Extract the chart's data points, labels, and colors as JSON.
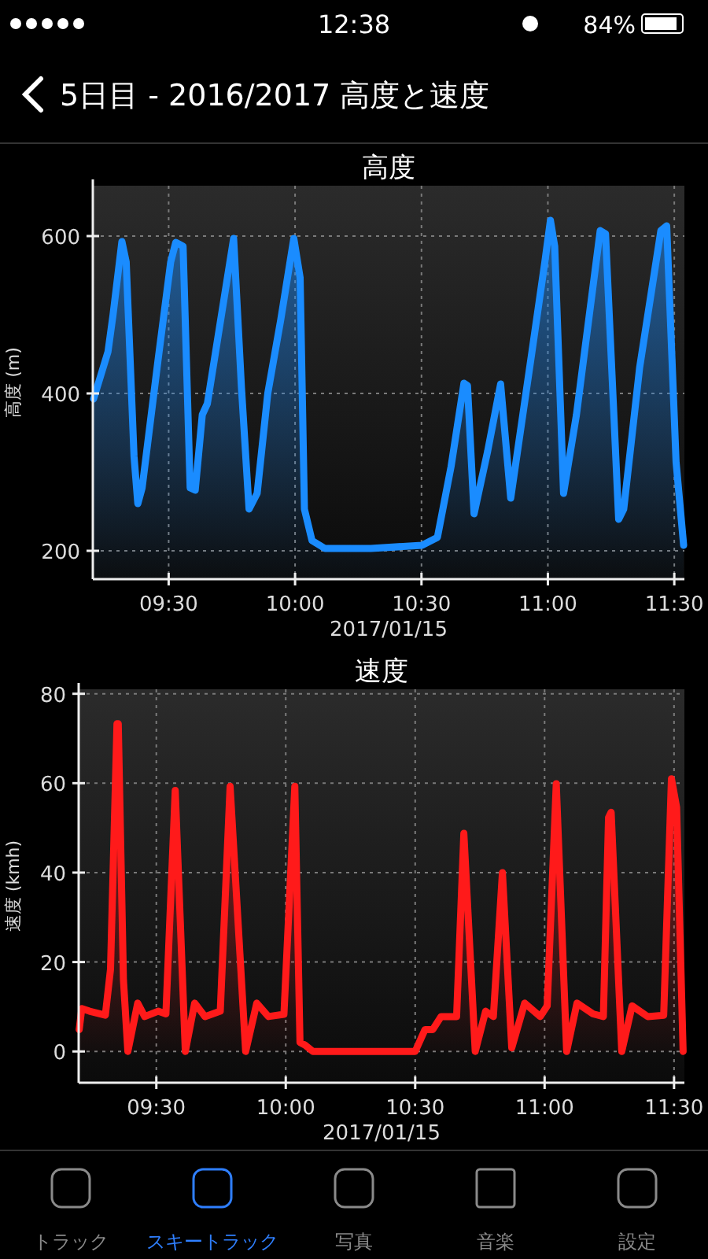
{
  "chart_data": [
    {
      "type": "other",
      "title": "5日目 - 2016/2017 高度と速度",
      "annotations": [
        "12:38",
        "84%",
        "トラック",
        "スキートラック",
        "写真",
        "音楽",
        "設定"
      ]
    },
    {
      "type": "area",
      "title": "高度",
      "xlabel": "2017/01/15",
      "ylabel": "高度 (m)",
      "xlim": [
        9.2,
        11.54
      ],
      "ylim": [
        164,
        664
      ],
      "xticks": [
        {
          "value": 9.5,
          "label": "09:30"
        },
        {
          "value": 10,
          "label": "10:00"
        },
        {
          "value": 10.5,
          "label": "10:30"
        },
        {
          "value": 11,
          "label": "11:00"
        },
        {
          "value": 11.5,
          "label": "11:30"
        }
      ],
      "yticks": [
        200,
        400,
        600
      ],
      "grid": true,
      "x": [
        9.203,
        9.26,
        9.28,
        9.315,
        9.332,
        9.363,
        9.378,
        9.395,
        9.457,
        9.508,
        9.528,
        9.557,
        9.585,
        9.605,
        9.633,
        9.653,
        9.757,
        9.788,
        9.818,
        9.85,
        9.892,
        9.943,
        9.995,
        10.02,
        10.037,
        10.067,
        10.118,
        10.3,
        10.502,
        10.563,
        10.617,
        10.668,
        10.682,
        10.708,
        10.762,
        10.813,
        10.853,
        10.937,
        10.988,
        11.01,
        11.027,
        11.062,
        11.113,
        11.207,
        11.228,
        11.28,
        11.3,
        11.363,
        11.447,
        11.47,
        11.507,
        11.537
      ],
      "series": [
        {
          "color": "#1a8cff",
          "values": [
            393,
            453,
            500,
            593,
            567,
            320,
            260,
            280,
            440,
            567,
            592,
            587,
            280,
            277,
            373,
            387,
            597,
            407,
            253,
            273,
            400,
            493,
            597,
            547,
            253,
            213,
            203,
            203,
            207,
            217,
            307,
            413,
            410,
            247,
            327,
            412,
            267,
            453,
            567,
            620,
            587,
            273,
            373,
            607,
            603,
            240,
            253,
            433,
            607,
            613,
            313,
            207
          ]
        }
      ]
    },
    {
      "type": "area",
      "title": "速度",
      "xlabel": "2017/01/15",
      "ylabel": "速度 (kmh)",
      "xlim": [
        9.2,
        11.54
      ],
      "ylim": [
        -7,
        81
      ],
      "xticks": [
        {
          "value": 9.5,
          "label": "09:30"
        },
        {
          "value": 10,
          "label": "10:00"
        },
        {
          "value": 10.5,
          "label": "10:30"
        },
        {
          "value": 11,
          "label": "11:00"
        },
        {
          "value": 11.5,
          "label": "11:30"
        }
      ],
      "yticks": [
        0,
        20,
        40,
        60,
        80
      ],
      "grid": true,
      "x": [
        9.202,
        9.212,
        9.242,
        9.303,
        9.323,
        9.348,
        9.353,
        9.373,
        9.39,
        9.428,
        9.455,
        9.507,
        9.537,
        9.573,
        9.612,
        9.648,
        9.688,
        9.747,
        9.785,
        9.845,
        9.888,
        9.933,
        9.993,
        10.035,
        10.055,
        10.075,
        10.105,
        10.5,
        10.538,
        10.568,
        10.6,
        10.66,
        10.688,
        10.732,
        10.772,
        10.802,
        10.837,
        10.873,
        10.923,
        10.983,
        11.01,
        11.045,
        11.085,
        11.125,
        11.187,
        11.227,
        11.247,
        11.257,
        11.298,
        11.338,
        11.398,
        11.46,
        11.49,
        11.51,
        11.535
      ],
      "series": [
        {
          "color": "#ff1a1a",
          "values": [
            4.9,
            9.6,
            9,
            8.1,
            18.4,
            73.3,
            73.3,
            16,
            0,
            10.8,
            7.8,
            9,
            8.4,
            58.4,
            0,
            10.8,
            7.8,
            9,
            59.3,
            0,
            10.8,
            7.8,
            8.3,
            59.3,
            2,
            1.4,
            0,
            0,
            4.9,
            4.9,
            7.8,
            7.8,
            48.8,
            0,
            9,
            7.8,
            40,
            0.8,
            10.8,
            7.8,
            10.2,
            59.9,
            0,
            10.8,
            8.4,
            7.8,
            52.3,
            53.5,
            0,
            10.2,
            7.8,
            8.1,
            61,
            54.6,
            0
          ]
        }
      ]
    }
  ]
}
